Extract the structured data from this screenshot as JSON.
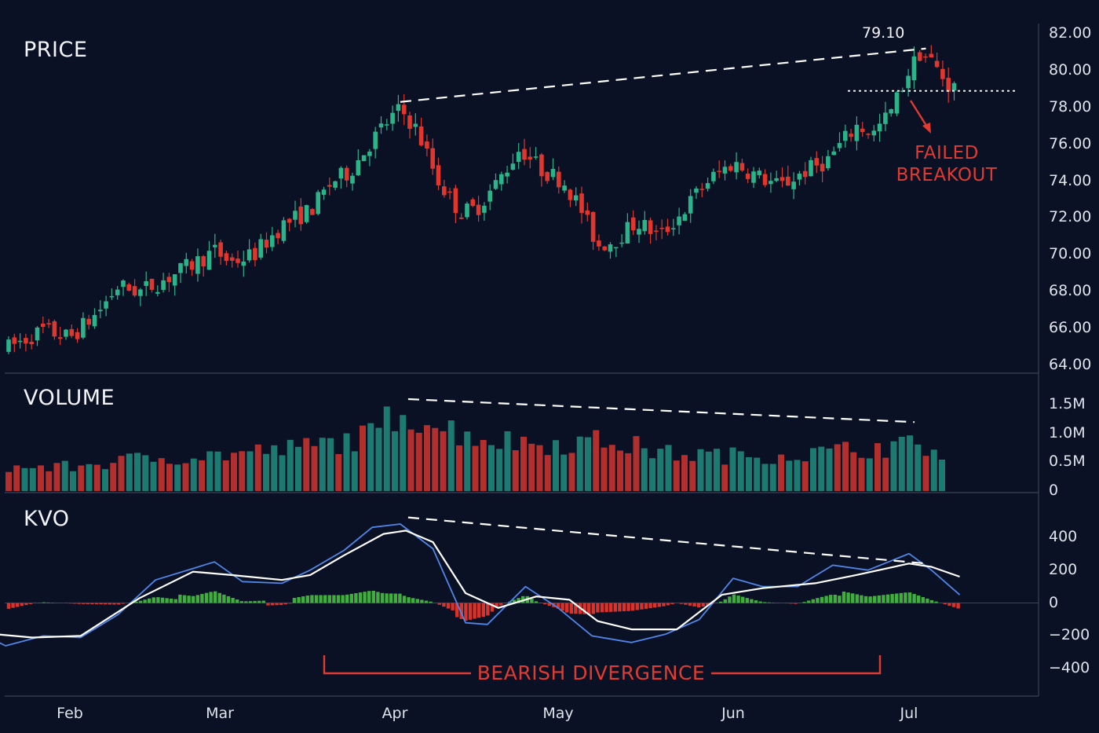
{
  "chart_data": [
    {
      "type": "candlestick",
      "panel": "price",
      "title": "PRICE",
      "ylim": [
        64,
        82
      ],
      "y_ticks": [
        "82.00",
        "80.00",
        "78.00",
        "76.00",
        "74.00",
        "72.00",
        "70.00",
        "68.00",
        "66.00",
        "64.00"
      ],
      "x_ticks": [
        "Feb",
        "Mar",
        "Apr",
        "May",
        "Jun",
        "Jul"
      ],
      "close_path": [
        [
          "Jan 15",
          66.0
        ],
        [
          "Jan 20",
          64.9
        ],
        [
          "Jan 27",
          65.9
        ],
        [
          "Feb 1",
          65.5
        ],
        [
          "Feb 6",
          66.8
        ],
        [
          "Feb 10",
          68.3
        ],
        [
          "Feb 14",
          68.0
        ],
        [
          "Feb 19",
          68.7
        ],
        [
          "Feb 24",
          69.5
        ],
        [
          "Feb 28",
          70.2
        ],
        [
          "Mar 3",
          69.6
        ],
        [
          "Mar 7",
          70.0
        ],
        [
          "Mar 12",
          71.6
        ],
        [
          "Mar 17",
          72.4
        ],
        [
          "Mar 21",
          74.0
        ],
        [
          "Mar 24",
          74.5
        ],
        [
          "Mar 27",
          75.8
        ],
        [
          "Mar 30",
          77.0
        ],
        [
          "Apr 2",
          77.9
        ],
        [
          "Apr 5",
          76.8
        ],
        [
          "Apr 9",
          74.0
        ],
        [
          "Apr 13",
          72.3
        ],
        [
          "Apr 16",
          72.5
        ],
        [
          "Apr 20",
          74.0
        ],
        [
          "Apr 24",
          75.8
        ],
        [
          "Apr 28",
          74.6
        ],
        [
          "May 2",
          74.0
        ],
        [
          "May 5",
          72.5
        ],
        [
          "May 8",
          70.5
        ],
        [
          "May 11",
          70.8
        ],
        [
          "May 15",
          71.8
        ],
        [
          "May 19",
          71.0
        ],
        [
          "May 23",
          72.3
        ],
        [
          "May 27",
          73.9
        ],
        [
          "Jun 1",
          75.0
        ],
        [
          "Jun 5",
          74.3
        ],
        [
          "Jun 9",
          73.7
        ],
        [
          "Jun 13",
          74.5
        ],
        [
          "Jun 17",
          75.1
        ],
        [
          "Jun 22",
          77.0
        ],
        [
          "Jun 25",
          76.6
        ],
        [
          "Jun 28",
          77.8
        ],
        [
          "Jul 1",
          80.0
        ],
        [
          "Jul 3",
          81.0
        ],
        [
          "Jul 5",
          80.5
        ],
        [
          "Jul 8",
          79.2
        ],
        [
          "Jul 10",
          79.0
        ]
      ],
      "peak_label": "79.10",
      "annotations": [
        "FAILED",
        "BREAKOUT"
      ],
      "support_level": 78.9,
      "trendline": [
        [
          "Apr 2",
          78.3
        ],
        [
          "Jul 4",
          81.2
        ]
      ]
    },
    {
      "type": "bar",
      "panel": "volume",
      "title": "VOLUME",
      "ylim": [
        0,
        1.6
      ],
      "y_ticks": [
        "1.5M",
        "1.0M",
        "0.5M",
        "0"
      ],
      "volume_path": [
        [
          "Jan 15",
          0.45
        ],
        [
          "Feb 1",
          0.48
        ],
        [
          "Feb 15",
          0.65
        ],
        [
          "Mar 1",
          0.72
        ],
        [
          "Mar 15",
          0.85
        ],
        [
          "Mar 28",
          1.1
        ],
        [
          "Apr 2",
          1.65
        ],
        [
          "Apr 10",
          1.25
        ],
        [
          "Apr 20",
          1.0
        ],
        [
          "May 1",
          0.95
        ],
        [
          "May 10",
          1.0
        ],
        [
          "May 20",
          0.75
        ],
        [
          "Jun 1",
          0.7
        ],
        [
          "Jun 15",
          0.75
        ],
        [
          "Jun 28",
          0.9
        ],
        [
          "Jul 5",
          0.9
        ],
        [
          "Jul 8",
          0.45
        ]
      ],
      "trendline": [
        [
          "Apr 2",
          1.6
        ],
        [
          "Jul 8",
          1.2
        ]
      ]
    },
    {
      "type": "line",
      "panel": "kvo",
      "title": "KVO",
      "ylim": [
        -470,
        480
      ],
      "y_ticks": [
        "400",
        "200",
        "0",
        "−200",
        "−400"
      ],
      "series": [
        {
          "color": "#4f86e8",
          "values": [
            [
              "Jan 15",
              -180
            ],
            [
              "Jan 20",
              -260
            ],
            [
              "Jan 27",
              -200
            ],
            [
              "Feb 3",
              -210
            ],
            [
              "Feb 10",
              -70
            ],
            [
              "Feb 17",
              140
            ],
            [
              "Feb 24",
              210
            ],
            [
              "Feb 28",
              250
            ],
            [
              "Mar 5",
              130
            ],
            [
              "Mar 12",
              120
            ],
            [
              "Mar 17",
              200
            ],
            [
              "Mar 23",
              320
            ],
            [
              "Mar 28",
              460
            ],
            [
              "Apr 2",
              480
            ],
            [
              "Apr 8",
              330
            ],
            [
              "Apr 14",
              -120
            ],
            [
              "Apr 18",
              -130
            ],
            [
              "Apr 25",
              100
            ],
            [
              "May 1",
              -30
            ],
            [
              "May 7",
              -200
            ],
            [
              "May 14",
              -240
            ],
            [
              "May 20",
              -190
            ],
            [
              "May 26",
              -100
            ],
            [
              "Jun 1",
              150
            ],
            [
              "Jun 6",
              100
            ],
            [
              "Jun 12",
              100
            ],
            [
              "Jun 18",
              230
            ],
            [
              "Jun 24",
              200
            ],
            [
              "Jul 1",
              300
            ],
            [
              "Jul 5",
              200
            ],
            [
              "Jul 10",
              50
            ]
          ]
        },
        {
          "color": "#ffffff",
          "values": [
            [
              "Jan 15",
              -180
            ],
            [
              "Jan 25",
              -210
            ],
            [
              "Feb 3",
              -200
            ],
            [
              "Feb 14",
              30
            ],
            [
              "Feb 24",
              190
            ],
            [
              "Mar 3",
              170
            ],
            [
              "Mar 12",
              140
            ],
            [
              "Mar 17",
              170
            ],
            [
              "Mar 23",
              290
            ],
            [
              "Mar 30",
              420
            ],
            [
              "Apr 3",
              440
            ],
            [
              "Apr 8",
              370
            ],
            [
              "Apr 14",
              60
            ],
            [
              "Apr 20",
              -30
            ],
            [
              "Apr 27",
              40
            ],
            [
              "May 3",
              20
            ],
            [
              "May 8",
              -110
            ],
            [
              "May 14",
              -160
            ],
            [
              "May 22",
              -160
            ],
            [
              "May 30",
              50
            ],
            [
              "Jun 6",
              90
            ],
            [
              "Jun 15",
              120
            ],
            [
              "Jun 22",
              170
            ],
            [
              "Jul 1",
              240
            ],
            [
              "Jul 5",
              220
            ],
            [
              "Jul 10",
              160
            ]
          ]
        }
      ],
      "histogram_colors": {
        "positive": "#3fae3c",
        "negative": "#d8322b"
      },
      "trendline": [
        [
          "Apr 2",
          520
        ],
        [
          "Jul 4",
          240
        ]
      ]
    }
  ],
  "labels": {
    "price_title": "PRICE",
    "volume_title": "VOLUME",
    "kvo_title": "KVO",
    "peak_value": "79.10",
    "failed_breakout": "FAILED\nBREAKOUT",
    "bearish_divergence": "BEARISH DIVERGENCE"
  },
  "colors": {
    "background": "#0b1124",
    "bull": "#2bb48a",
    "bear": "#e0362e",
    "kvo_fast": "#4f86e8",
    "kvo_signal": "#ffffff",
    "annotation": "#e03b32"
  }
}
